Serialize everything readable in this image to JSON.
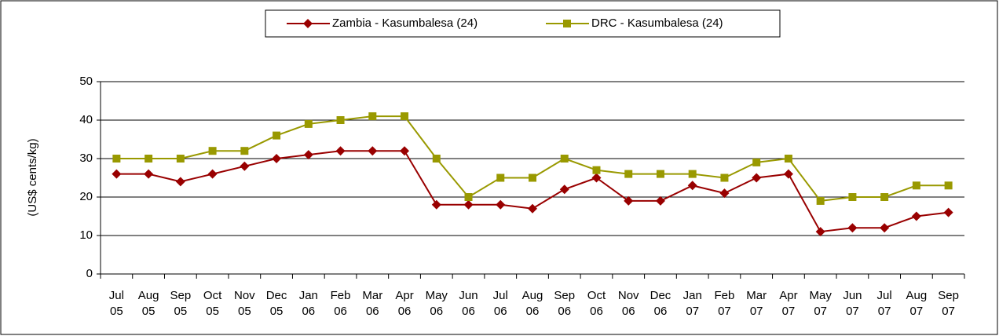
{
  "chart_data": {
    "type": "line",
    "y_label": "(US$ cents/kg)",
    "categories": [
      "Jul 05",
      "Aug 05",
      "Sep 05",
      "Oct 05",
      "Nov 05",
      "Dec 05",
      "Jan 06",
      "Feb 06",
      "Mar 06",
      "Apr 06",
      "May 06",
      "Jun 06",
      "Jul 06",
      "Aug 06",
      "Sep 06",
      "Oct 06",
      "Nov 06",
      "Dec 06",
      "Jan 07",
      "Feb 07",
      "Mar 07",
      "Apr 07",
      "May 07",
      "Jun 07",
      "Jul 07",
      "Aug 07",
      "Sep 07"
    ],
    "series": [
      {
        "name": "Zambia - Kasumbalesa (24)",
        "color": "#990000",
        "marker": "diamond",
        "values": [
          26,
          26,
          24,
          26,
          28,
          30,
          31,
          32,
          32,
          32,
          18,
          18,
          18,
          17,
          22,
          25,
          19,
          19,
          23,
          21,
          25,
          26,
          11,
          12,
          12,
          15,
          16
        ]
      },
      {
        "name": "DRC - Kasumbalesa (24)",
        "color": "#999900",
        "marker": "square",
        "values": [
          30,
          30,
          30,
          32,
          32,
          36,
          39,
          40,
          41,
          41,
          30,
          20,
          25,
          25,
          30,
          27,
          26,
          26,
          26,
          25,
          29,
          30,
          19,
          20,
          20,
          23,
          23
        ]
      }
    ],
    "ylim": [
      0,
      50
    ],
    "yticks": [
      0,
      10,
      20,
      30,
      40,
      50
    ],
    "grid": true,
    "legend": "top"
  }
}
